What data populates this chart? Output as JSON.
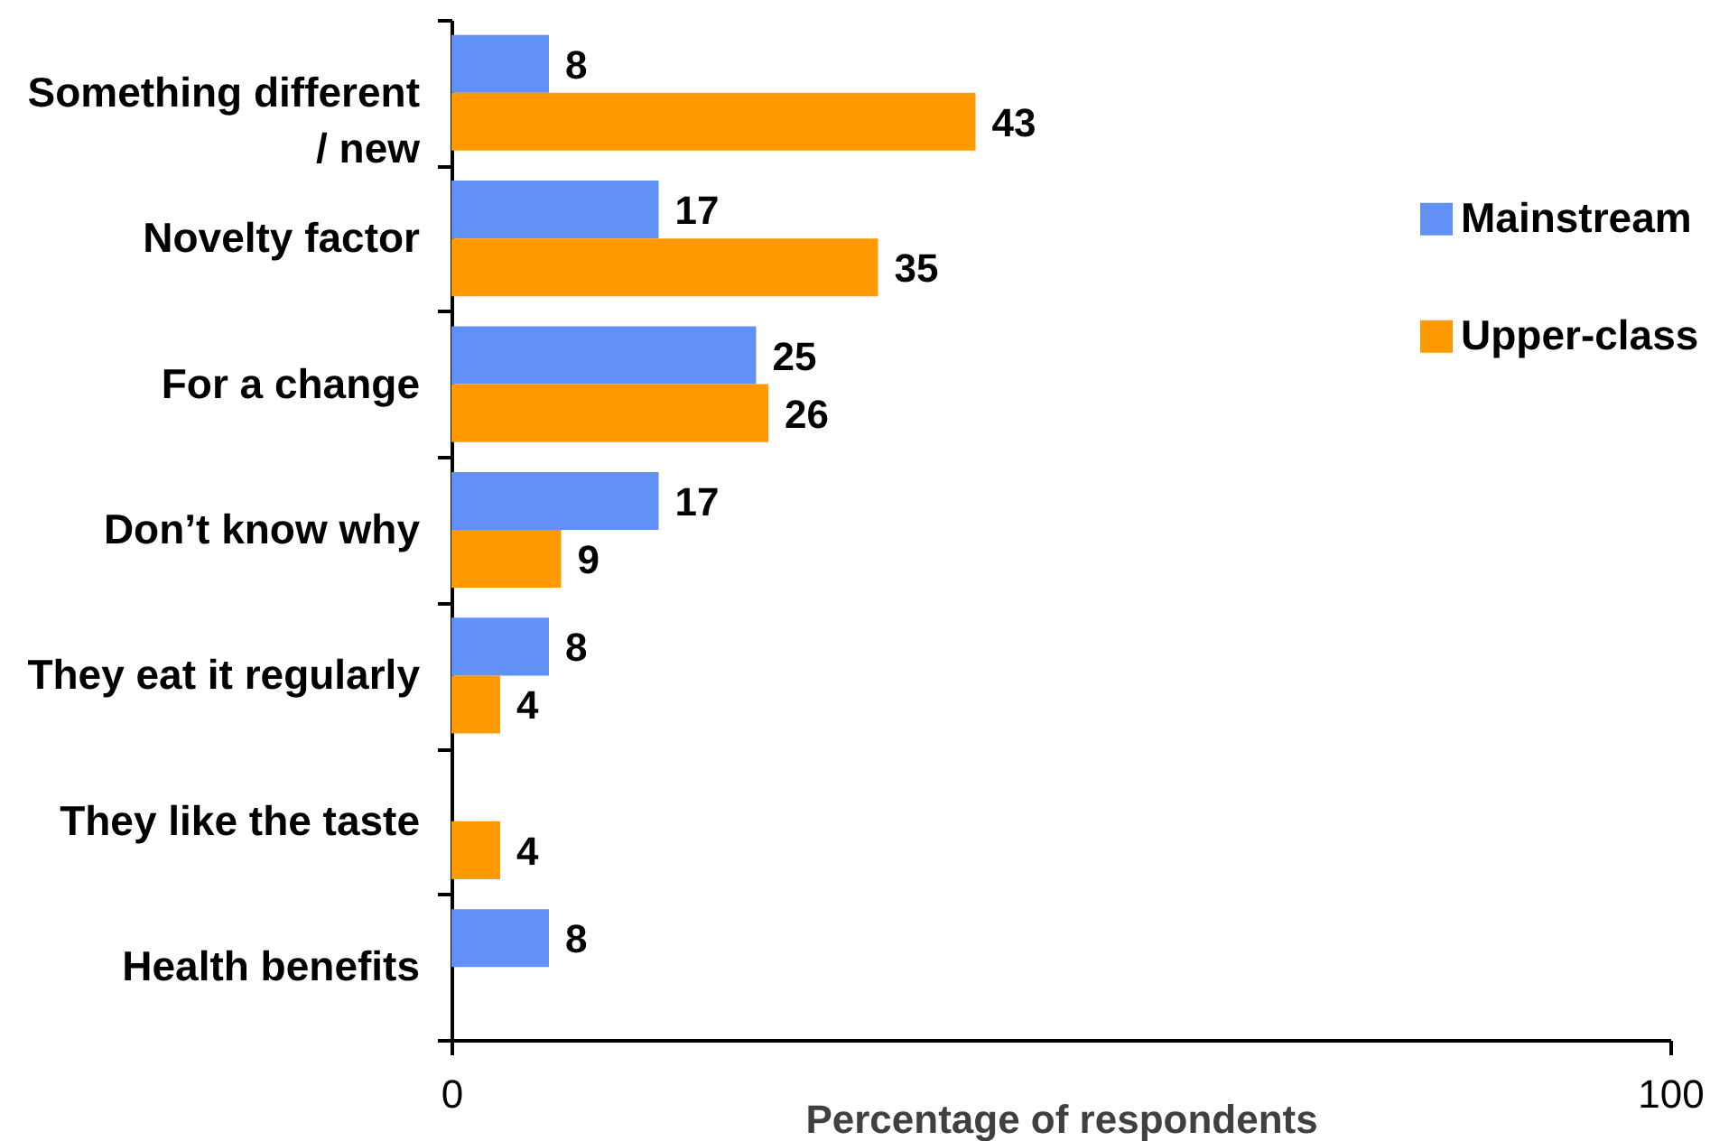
{
  "chart_data": {
    "type": "bar",
    "orientation": "horizontal",
    "categories": [
      "Something different / new",
      "Novelty factor",
      "For a change",
      "Don’t know why",
      "They eat it regularly",
      "They like the taste",
      "Health benefits"
    ],
    "series": [
      {
        "name": "Mainstream",
        "color": "#6190f7",
        "values": [
          8,
          17,
          25,
          17,
          8,
          null,
          8
        ]
      },
      {
        "name": "Upper-class",
        "color": "#ff9900",
        "values": [
          43,
          35,
          26,
          9,
          4,
          4,
          null
        ]
      }
    ],
    "xlabel": "Percentage of respondents",
    "xlim": [
      0,
      100
    ],
    "xticks": [
      0,
      100
    ],
    "data_labels": true,
    "legend": "right"
  }
}
